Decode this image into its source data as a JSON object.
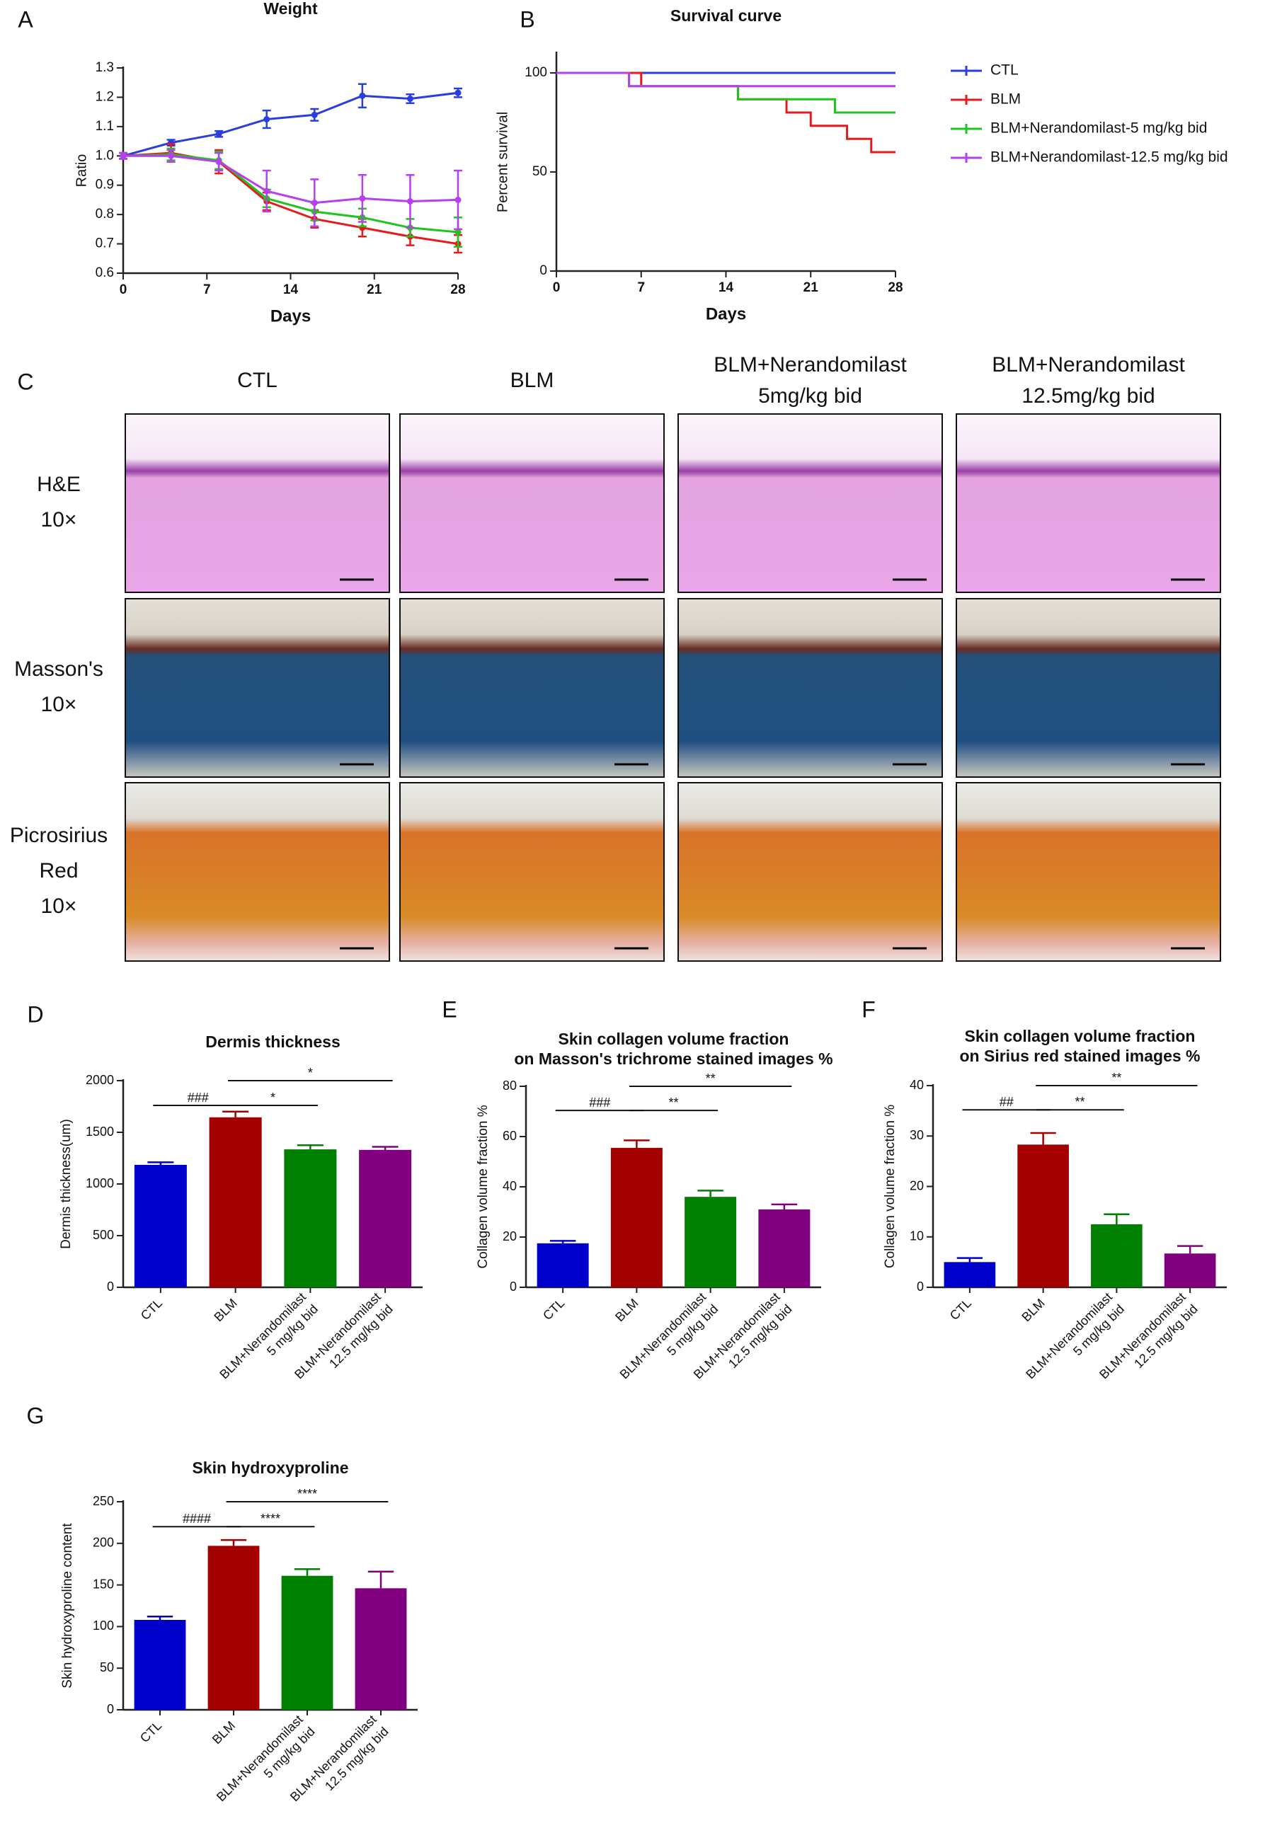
{
  "chart_data": [
    {
      "panel_label": "A",
      "type": "line",
      "title": [
        "Weight"
      ],
      "x_label": "Days",
      "y_label": "Ratio",
      "x": [
        0,
        4,
        8,
        12,
        16,
        20,
        24,
        28
      ],
      "xlim": [
        0,
        28
      ],
      "xticks": [
        0,
        7,
        14,
        21,
        28
      ],
      "ylim": [
        0.6,
        1.3
      ],
      "yticks": [
        0.6,
        0.7,
        0.8,
        0.9,
        {
          "value": 1,
          "label": "1.0"
        },
        1.1,
        1.2,
        1.3
      ],
      "series": [
        {
          "color": "#2a3ee0",
          "values": [
            1.0,
            1.045,
            1.075,
            1.125,
            1.14,
            1.205,
            1.195,
            1.215
          ],
          "errors": [
            0.01,
            0.01,
            0.01,
            0.03,
            0.02,
            0.04,
            0.015,
            0.015
          ]
        },
        {
          "color": "#e8191b",
          "values": [
            1.0,
            1.01,
            0.98,
            0.845,
            0.785,
            0.755,
            0.725,
            0.7
          ],
          "errors": [
            0.01,
            0.03,
            0.04,
            0.03,
            0.03,
            0.03,
            0.03,
            0.03
          ]
        },
        {
          "color": "#1fc41f",
          "values": [
            1.0,
            1.005,
            0.985,
            0.855,
            0.81,
            0.79,
            0.755,
            0.74
          ],
          "errors": [
            0.01,
            0.02,
            0.03,
            0.03,
            0.03,
            0.03,
            0.03,
            0.05
          ]
        },
        {
          "color": "#b63ff0",
          "values": [
            1.0,
            1.0,
            0.98,
            0.88,
            0.84,
            0.855,
            0.845,
            0.85
          ],
          "errors": [
            0.01,
            0.02,
            0.03,
            0.07,
            0.08,
            0.08,
            0.09,
            0.1
          ]
        }
      ]
    },
    {
      "panel_label": "B",
      "type": "step",
      "title": [
        "Survival curve"
      ],
      "x_label": "Days",
      "y_label": "Percent survival",
      "xlim": [
        0,
        28
      ],
      "xticks": [
        0,
        7,
        14,
        21,
        28
      ],
      "ylim": [
        0,
        110
      ],
      "yticks": [
        0,
        50,
        100
      ],
      "series": [
        {
          "name": "CTL",
          "color": "#2a3ee0",
          "x": [
            0,
            28
          ],
          "values": [
            100,
            100
          ]
        },
        {
          "name": "BLM",
          "color": "#e8191b",
          "x": [
            0,
            7,
            15,
            19,
            21,
            24,
            26,
            28
          ],
          "values": [
            100,
            93.3,
            86.7,
            80,
            73.3,
            66.7,
            60,
            60
          ]
        },
        {
          "name": "BLM+Nerandomilast-5 mg/kg bid",
          "color": "#1fc41f",
          "x": [
            0,
            6,
            15,
            23,
            28
          ],
          "values": [
            100,
            93.3,
            86.7,
            80,
            80
          ]
        },
        {
          "name": "BLM+Nerandomilast-12.5 mg/kg bid",
          "color": "#b63ff0",
          "x": [
            0,
            6,
            28
          ],
          "values": [
            100,
            93.3,
            93.3
          ]
        }
      ]
    },
    {
      "panel_label": "D",
      "type": "bar",
      "title": [
        "Dermis thickness"
      ],
      "y_label": "Dermis thickness(um)",
      "categories": [
        [
          "CTL"
        ],
        [
          "BLM"
        ],
        [
          "BLM+Nerandomilast",
          "5 mg/kg bid"
        ],
        [
          "BLM+Nerandomilast",
          "12.5 mg/kg bid"
        ]
      ],
      "colors": [
        "#0000cc",
        "#a50000",
        "#008000",
        "#800080"
      ],
      "values": [
        1185,
        1645,
        1335,
        1330
      ],
      "errors": [
        25,
        55,
        40,
        30
      ],
      "ylim": [
        0,
        2000
      ],
      "yticks": [
        0,
        500,
        1000,
        1500,
        2000
      ],
      "annotations": [
        "###",
        "*",
        "*"
      ]
    },
    {
      "panel_label": "E",
      "type": "bar",
      "title": [
        "Skin collagen volume fraction",
        "on Masson's trichrome stained images %"
      ],
      "y_label": "Collagen volume fraction %",
      "categories": [
        [
          "CTL"
        ],
        [
          "BLM"
        ],
        [
          "BLM+Nerandomilast",
          "5 mg/kg bid"
        ],
        [
          "BLM+Nerandomilast",
          "12.5 mg/kg bid"
        ]
      ],
      "colors": [
        "#0000cc",
        "#a50000",
        "#008000",
        "#800080"
      ],
      "values": [
        17.5,
        55.5,
        36,
        31
      ],
      "errors": [
        1,
        3,
        2.5,
        2
      ],
      "ylim": [
        0,
        80
      ],
      "yticks": [
        0,
        20,
        40,
        60,
        80
      ],
      "annotations": [
        "###",
        "**",
        "**"
      ]
    },
    {
      "panel_label": "F",
      "type": "bar",
      "title": [
        "Skin collagen volume fraction",
        "on Sirius red stained images %"
      ],
      "y_label": "Collagen volume fraction %",
      "categories": [
        [
          "CTL"
        ],
        [
          "BLM"
        ],
        [
          "BLM+Nerandomilast",
          "5 mg/kg bid"
        ],
        [
          "BLM+Nerandomilast",
          "12.5 mg/kg bid"
        ]
      ],
      "colors": [
        "#0000cc",
        "#a50000",
        "#008000",
        "#800080"
      ],
      "values": [
        5,
        28.3,
        12.5,
        6.7
      ],
      "errors": [
        0.8,
        2.3,
        2,
        1.5
      ],
      "ylim": [
        0,
        40
      ],
      "yticks": [
        0,
        10,
        20,
        30,
        40
      ],
      "annotations": [
        "##",
        "**",
        "**"
      ]
    },
    {
      "panel_label": "G",
      "type": "bar",
      "title": [
        "Skin hydroxyproline"
      ],
      "y_label": "Skin hydroxyproline content",
      "categories": [
        [
          "CTL"
        ],
        [
          "BLM"
        ],
        [
          "BLM+Nerandomilast",
          "5 mg/kg bid"
        ],
        [
          "BLM+Nerandomilast",
          "12.5 mg/kg bid"
        ]
      ],
      "colors": [
        "#0000cc",
        "#a50000",
        "#008000",
        "#800080"
      ],
      "values": [
        108,
        197,
        161,
        146
      ],
      "errors": [
        4,
        7,
        8,
        20
      ],
      "ylim": [
        0,
        250
      ],
      "yticks": [
        0,
        50,
        100,
        150,
        200,
        250
      ],
      "annotations": [
        "####",
        "****",
        "****"
      ]
    }
  ],
  "histology": {
    "panel_label": "C",
    "columns": [
      [
        "CTL"
      ],
      [
        "BLM"
      ],
      [
        "BLM+Nerandomilast",
        "5mg/kg bid"
      ],
      [
        "BLM+Nerandomilast",
        "12.5mg/kg bid"
      ]
    ],
    "rows": [
      [
        "H&E",
        "10×"
      ],
      [
        "Masson's",
        "10×"
      ],
      [
        "Picrosirius",
        "Red",
        "10×"
      ]
    ]
  }
}
